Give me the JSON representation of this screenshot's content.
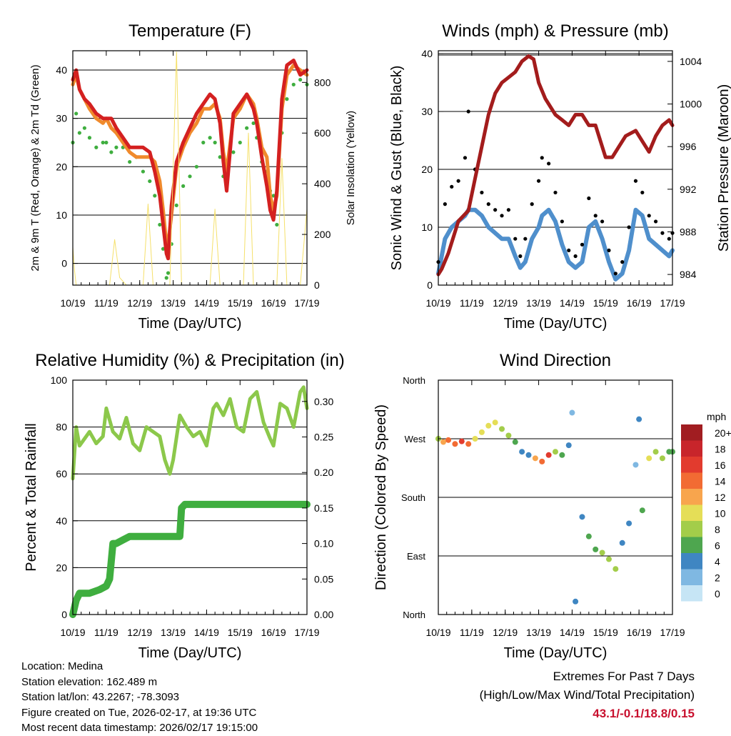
{
  "footer": {
    "location": "Location: Medina",
    "elevation": "Station elevation: 162.489 m",
    "latlon": "Station lat/lon: 43.2267; -78.3093",
    "created": "Figure created on Tue, 2026-02-17, at 19:36 UTC",
    "recent": "Most recent data timestamp: 2026/02/17 19:15:00",
    "extremes_title": "Extremes For Past 7 Days",
    "extremes_subtitle": "(High/Low/Max Wind/Total Precipitation)",
    "extremes_value": "43.1/-0.1/18.8/0.15",
    "extremes_color": "#c8102e"
  },
  "chart_data": [
    {
      "id": "temperature",
      "type": "line",
      "title": "Temperature (F)",
      "xlabel": "Time (Day/UTC)",
      "ylabel_left": "2m & 9m T (Red, Orange) & 2m Td (Green)",
      "ylabel_right": "Solar Insolation (Yellow)",
      "x_range": [
        10,
        17
      ],
      "x_ticks": [
        "10/19",
        "11/19",
        "12/19",
        "13/19",
        "14/19",
        "15/19",
        "16/19",
        "17/19"
      ],
      "ylim": [
        -4.5,
        44
      ],
      "y_ticks": [
        0,
        10,
        20,
        30,
        40
      ],
      "y2lim": [
        0,
        925
      ],
      "y2_ticks": [
        0,
        200,
        400,
        600,
        800
      ],
      "series": [
        {
          "name": "2m Dewpoint",
          "color": "#3fae3f",
          "style": "dots",
          "x": [
            10.0,
            10.1,
            10.2,
            10.35,
            10.5,
            10.7,
            10.9,
            11.0,
            11.15,
            11.3,
            11.5,
            11.7,
            11.9,
            12.1,
            12.3,
            12.45,
            12.6,
            12.7,
            12.8,
            12.85,
            12.95,
            13.1,
            13.3,
            13.5,
            13.7,
            13.9,
            14.1,
            14.25,
            14.4,
            14.5,
            14.6,
            14.8,
            15.0,
            15.2,
            15.4,
            15.5,
            15.65,
            15.8,
            15.9,
            16.0,
            16.1,
            16.25,
            16.4,
            16.6,
            16.8,
            17.0
          ],
          "values": [
            25,
            31,
            27,
            28,
            26,
            24,
            25,
            25,
            23,
            24,
            24,
            21,
            22,
            19,
            17,
            14,
            8,
            3,
            -3,
            -2,
            4,
            12,
            16,
            18,
            20,
            25,
            26,
            25,
            22,
            18,
            16,
            23,
            25,
            28,
            29,
            26,
            21,
            19,
            15,
            14,
            8,
            27,
            34,
            37,
            38,
            37
          ]
        },
        {
          "name": "9m Temperature",
          "color": "#f08a2c",
          "x": [
            10.0,
            10.1,
            10.2,
            10.35,
            10.5,
            10.7,
            10.9,
            11.0,
            11.15,
            11.3,
            11.5,
            11.7,
            11.9,
            12.1,
            12.3,
            12.45,
            12.6,
            12.7,
            12.8,
            12.85,
            12.95,
            13.1,
            13.3,
            13.5,
            13.7,
            13.9,
            14.1,
            14.25,
            14.4,
            14.5,
            14.6,
            14.8,
            15.0,
            15.2,
            15.4,
            15.5,
            15.65,
            15.8,
            15.9,
            16.0,
            16.1,
            16.25,
            16.4,
            16.6,
            16.8,
            17.0
          ],
          "values": [
            37,
            39,
            36,
            34,
            32,
            30,
            29,
            30,
            28,
            27,
            25,
            23,
            22,
            22,
            22,
            21,
            17,
            11,
            4,
            4,
            10,
            20,
            24,
            27,
            29,
            32,
            32,
            33,
            30,
            23,
            19,
            30,
            32,
            35,
            33,
            30,
            24,
            22,
            14,
            11,
            14,
            32,
            39,
            41,
            40,
            39
          ]
        },
        {
          "name": "2m Temperature",
          "color": "#d42020",
          "x": [
            10.0,
            10.1,
            10.2,
            10.35,
            10.5,
            10.7,
            10.9,
            11.0,
            11.15,
            11.3,
            11.5,
            11.7,
            11.9,
            12.1,
            12.3,
            12.45,
            12.6,
            12.7,
            12.8,
            12.85,
            12.95,
            13.1,
            13.3,
            13.5,
            13.7,
            13.9,
            14.1,
            14.25,
            14.4,
            14.5,
            14.6,
            14.8,
            15.0,
            15.2,
            15.4,
            15.5,
            15.65,
            15.8,
            15.9,
            16.0,
            16.1,
            16.25,
            16.4,
            16.6,
            16.8,
            17.0
          ],
          "values": [
            38,
            40,
            36,
            34,
            33,
            31,
            30,
            30,
            30,
            28,
            26,
            24,
            24,
            24,
            23,
            19,
            14,
            8,
            2,
            1,
            12,
            21,
            25,
            28,
            31,
            33,
            35,
            34,
            29,
            21,
            15,
            31,
            33,
            35,
            32,
            29,
            22,
            16,
            11,
            9,
            15,
            34,
            41,
            42,
            39,
            40
          ]
        },
        {
          "name": "Solar Insolation",
          "color": "#f5e06a",
          "axis": "right",
          "x": [
            10.0,
            10.05,
            10.1,
            10.2,
            10.6,
            10.8,
            10.95,
            11.1,
            11.25,
            11.4,
            11.6,
            11.8,
            12.0,
            12.1,
            12.25,
            12.4,
            12.6,
            12.8,
            12.9,
            13.1,
            13.25,
            13.4,
            13.6,
            13.8,
            14.0,
            14.1,
            14.25,
            14.4,
            14.6,
            14.8,
            15.0,
            15.1,
            15.25,
            15.4,
            15.6,
            15.8,
            16.0,
            16.1,
            16.25,
            16.4,
            16.6,
            16.8,
            17.0
          ],
          "values": [
            150,
            60,
            0,
            0,
            0,
            0,
            0,
            0,
            180,
            30,
            0,
            0,
            0,
            0,
            320,
            0,
            0,
            0,
            0,
            920,
            0,
            0,
            0,
            0,
            0,
            0,
            300,
            0,
            0,
            0,
            0,
            0,
            600,
            0,
            0,
            0,
            0,
            0,
            500,
            0,
            0,
            0,
            300
          ]
        }
      ]
    },
    {
      "id": "winds",
      "type": "line",
      "title": "Winds (mph) & Pressure (mb)",
      "xlabel": "Time (Day/UTC)",
      "ylabel_left": "Sonic Wind & Gust (Blue, Black)",
      "ylabel_right": "Station Pressure (Maroon)",
      "x_range": [
        10,
        17
      ],
      "x_ticks": [
        "10/19",
        "11/19",
        "12/19",
        "13/19",
        "14/19",
        "15/19",
        "16/19",
        "17/19"
      ],
      "ylim": [
        0,
        40.5
      ],
      "y_ticks": [
        0,
        10,
        20,
        30,
        40
      ],
      "y2lim": [
        983,
        1005
      ],
      "y2_ticks": [
        984,
        988,
        992,
        996,
        1000,
        1004
      ],
      "series": [
        {
          "name": "Sonic Wind",
          "color": "#4f8fcc",
          "x": [
            10.0,
            10.2,
            10.4,
            10.6,
            10.8,
            10.9,
            11.1,
            11.3,
            11.5,
            11.7,
            11.9,
            12.1,
            12.3,
            12.45,
            12.6,
            12.8,
            13.0,
            13.1,
            13.3,
            13.5,
            13.7,
            13.9,
            14.1,
            14.3,
            14.5,
            14.7,
            14.9,
            15.1,
            15.3,
            15.5,
            15.7,
            15.9,
            16.1,
            16.3,
            16.5,
            16.7,
            16.9,
            17.0
          ],
          "values": [
            2,
            8,
            10,
            11,
            12,
            13,
            13,
            12,
            10,
            9,
            8,
            8,
            5,
            3,
            4,
            8,
            10,
            12,
            13,
            11,
            7,
            4,
            3,
            4,
            10,
            11,
            8,
            4,
            1,
            2,
            6,
            13,
            12,
            8,
            7,
            6,
            5,
            6
          ]
        },
        {
          "name": "Gust",
          "color": "#000000",
          "style": "dots",
          "x": [
            10.0,
            10.2,
            10.4,
            10.6,
            10.8,
            10.9,
            11.1,
            11.3,
            11.5,
            11.7,
            11.9,
            12.1,
            12.3,
            12.45,
            12.6,
            12.8,
            13.0,
            13.1,
            13.3,
            13.5,
            13.7,
            13.9,
            14.1,
            14.3,
            14.5,
            14.7,
            14.9,
            15.1,
            15.3,
            15.5,
            15.7,
            15.9,
            16.1,
            16.3,
            16.5,
            16.7,
            16.9,
            17.0
          ],
          "values": [
            4,
            14,
            17,
            18,
            22,
            30,
            20,
            16,
            14,
            13,
            12,
            13,
            8,
            5,
            8,
            14,
            18,
            22,
            21,
            16,
            11,
            6,
            5,
            7,
            15,
            12,
            11,
            6,
            2,
            4,
            10,
            18,
            16,
            12,
            11,
            9,
            8,
            9
          ]
        },
        {
          "name": "Station Pressure",
          "color": "#a31c1c",
          "axis": "right",
          "x": [
            10.0,
            10.1,
            10.3,
            10.6,
            10.9,
            11.1,
            11.3,
            11.5,
            11.7,
            11.9,
            12.1,
            12.3,
            12.5,
            12.7,
            12.85,
            13.0,
            13.2,
            13.5,
            13.7,
            13.9,
            14.1,
            14.3,
            14.5,
            14.7,
            14.9,
            15.0,
            15.2,
            15.4,
            15.6,
            15.9,
            16.1,
            16.3,
            16.5,
            16.7,
            16.9,
            17.0
          ],
          "values": [
            984,
            984.5,
            986,
            989,
            990,
            993,
            996,
            999,
            1001,
            1002,
            1002.5,
            1003,
            1004,
            1004.5,
            1004.2,
            1002,
            1000.5,
            999,
            998.5,
            998,
            999,
            999,
            998,
            998,
            996,
            995,
            995,
            996,
            997,
            997.5,
            996.5,
            995.5,
            997,
            998,
            998.5,
            998
          ]
        }
      ]
    },
    {
      "id": "humidity",
      "type": "line",
      "title": "Relative Humidity (%) & Precipitation (in)",
      "xlabel": "Time (Day/UTC)",
      "ylabel_left": "Percent & Total Rainfall",
      "x_range": [
        10,
        17
      ],
      "x_ticks": [
        "10/19",
        "11/19",
        "12/19",
        "13/19",
        "14/19",
        "15/19",
        "16/19",
        "17/19"
      ],
      "ylim": [
        0,
        100
      ],
      "y_ticks": [
        0,
        20,
        40,
        60,
        80,
        100
      ],
      "y2lim": [
        0,
        0.33
      ],
      "y2_ticks": [
        "0.00",
        "0.05",
        "0.10",
        "0.15",
        "0.20",
        "0.25",
        "0.30"
      ],
      "series": [
        {
          "name": "Relative Humidity",
          "color": "#8cc84b",
          "x": [
            10.0,
            10.1,
            10.2,
            10.35,
            10.5,
            10.7,
            10.9,
            11.0,
            11.2,
            11.4,
            11.6,
            11.8,
            12.0,
            12.2,
            12.4,
            12.6,
            12.75,
            12.9,
            13.0,
            13.2,
            13.4,
            13.6,
            13.8,
            14.0,
            14.2,
            14.3,
            14.5,
            14.7,
            14.9,
            15.1,
            15.3,
            15.5,
            15.7,
            15.9,
            16.0,
            16.2,
            16.4,
            16.6,
            16.8,
            16.9,
            17.0
          ],
          "values": [
            58,
            80,
            72,
            75,
            78,
            73,
            76,
            88,
            78,
            75,
            84,
            73,
            70,
            80,
            78,
            76,
            66,
            60,
            66,
            85,
            80,
            76,
            78,
            72,
            88,
            90,
            85,
            92,
            80,
            78,
            92,
            95,
            82,
            75,
            72,
            90,
            88,
            80,
            95,
            97,
            88
          ]
        },
        {
          "name": "Total Rainfall",
          "color": "#3fae3f",
          "axis": "right",
          "x": [
            10.0,
            10.1,
            10.2,
            10.5,
            10.8,
            11.0,
            11.1,
            11.2,
            11.3,
            11.5,
            11.7,
            11.9,
            12.0,
            12.5,
            13.0,
            13.2,
            13.25,
            13.35,
            14.0,
            15.0,
            16.0,
            17.0
          ],
          "values": [
            0,
            0.02,
            0.03,
            0.03,
            0.035,
            0.04,
            0.05,
            0.1,
            0.1,
            0.105,
            0.11,
            0.11,
            0.11,
            0.11,
            0.11,
            0.11,
            0.15,
            0.155,
            0.155,
            0.155,
            0.155,
            0.155
          ]
        }
      ]
    },
    {
      "id": "direction",
      "type": "scatter",
      "title": "Wind Direction",
      "xlabel": "Time (Day/UTC)",
      "ylabel_left": "Direction (Colored By Speed)",
      "x_range": [
        10,
        17
      ],
      "x_ticks": [
        "10/19",
        "11/19",
        "12/19",
        "13/19",
        "14/19",
        "15/19",
        "16/19",
        "17/19"
      ],
      "y_categories": [
        "North",
        "East",
        "South",
        "West",
        "North"
      ],
      "ylim": [
        0,
        360
      ],
      "colorbar": {
        "title": "mph",
        "labels": [
          "20+",
          "18",
          "16",
          "14",
          "12",
          "10",
          "8",
          "6",
          "4",
          "2",
          "0"
        ],
        "colors": [
          "#a11d21",
          "#c8252b",
          "#e23b2e",
          "#f26b33",
          "#f8a54d",
          "#e5de57",
          "#a3cd4a",
          "#4ea64f",
          "#3f86c2",
          "#7fb8e2",
          "#c6e5f5"
        ]
      },
      "series": [
        {
          "name": "Wind Direction",
          "x": [
            10.0,
            10.15,
            10.3,
            10.5,
            10.7,
            10.9,
            11.1,
            11.3,
            11.5,
            11.7,
            11.9,
            12.1,
            12.3,
            12.5,
            12.7,
            12.9,
            13.1,
            13.3,
            13.5,
            13.7,
            13.9,
            14.0,
            14.1,
            14.3,
            14.5,
            14.7,
            14.9,
            15.1,
            15.3,
            15.5,
            15.7,
            15.9,
            16.0,
            16.1,
            16.3,
            16.5,
            16.7,
            16.9,
            17.0
          ],
          "values": [
            270,
            265,
            268,
            262,
            266,
            262,
            270,
            280,
            290,
            295,
            285,
            275,
            265,
            250,
            245,
            240,
            235,
            245,
            250,
            245,
            260,
            310,
            20,
            150,
            120,
            100,
            95,
            85,
            70,
            110,
            140,
            230,
            300,
            160,
            240,
            250,
            240,
            250,
            250
          ],
          "speeds": [
            8,
            12,
            14,
            14,
            16,
            14,
            10,
            9,
            10,
            9,
            8,
            7,
            5,
            4,
            3,
            12,
            14,
            16,
            8,
            6,
            4,
            2,
            3,
            4,
            6,
            5,
            8,
            8,
            7,
            4,
            3,
            2,
            3,
            5,
            9,
            8,
            7,
            6,
            5
          ]
        }
      ]
    }
  ]
}
